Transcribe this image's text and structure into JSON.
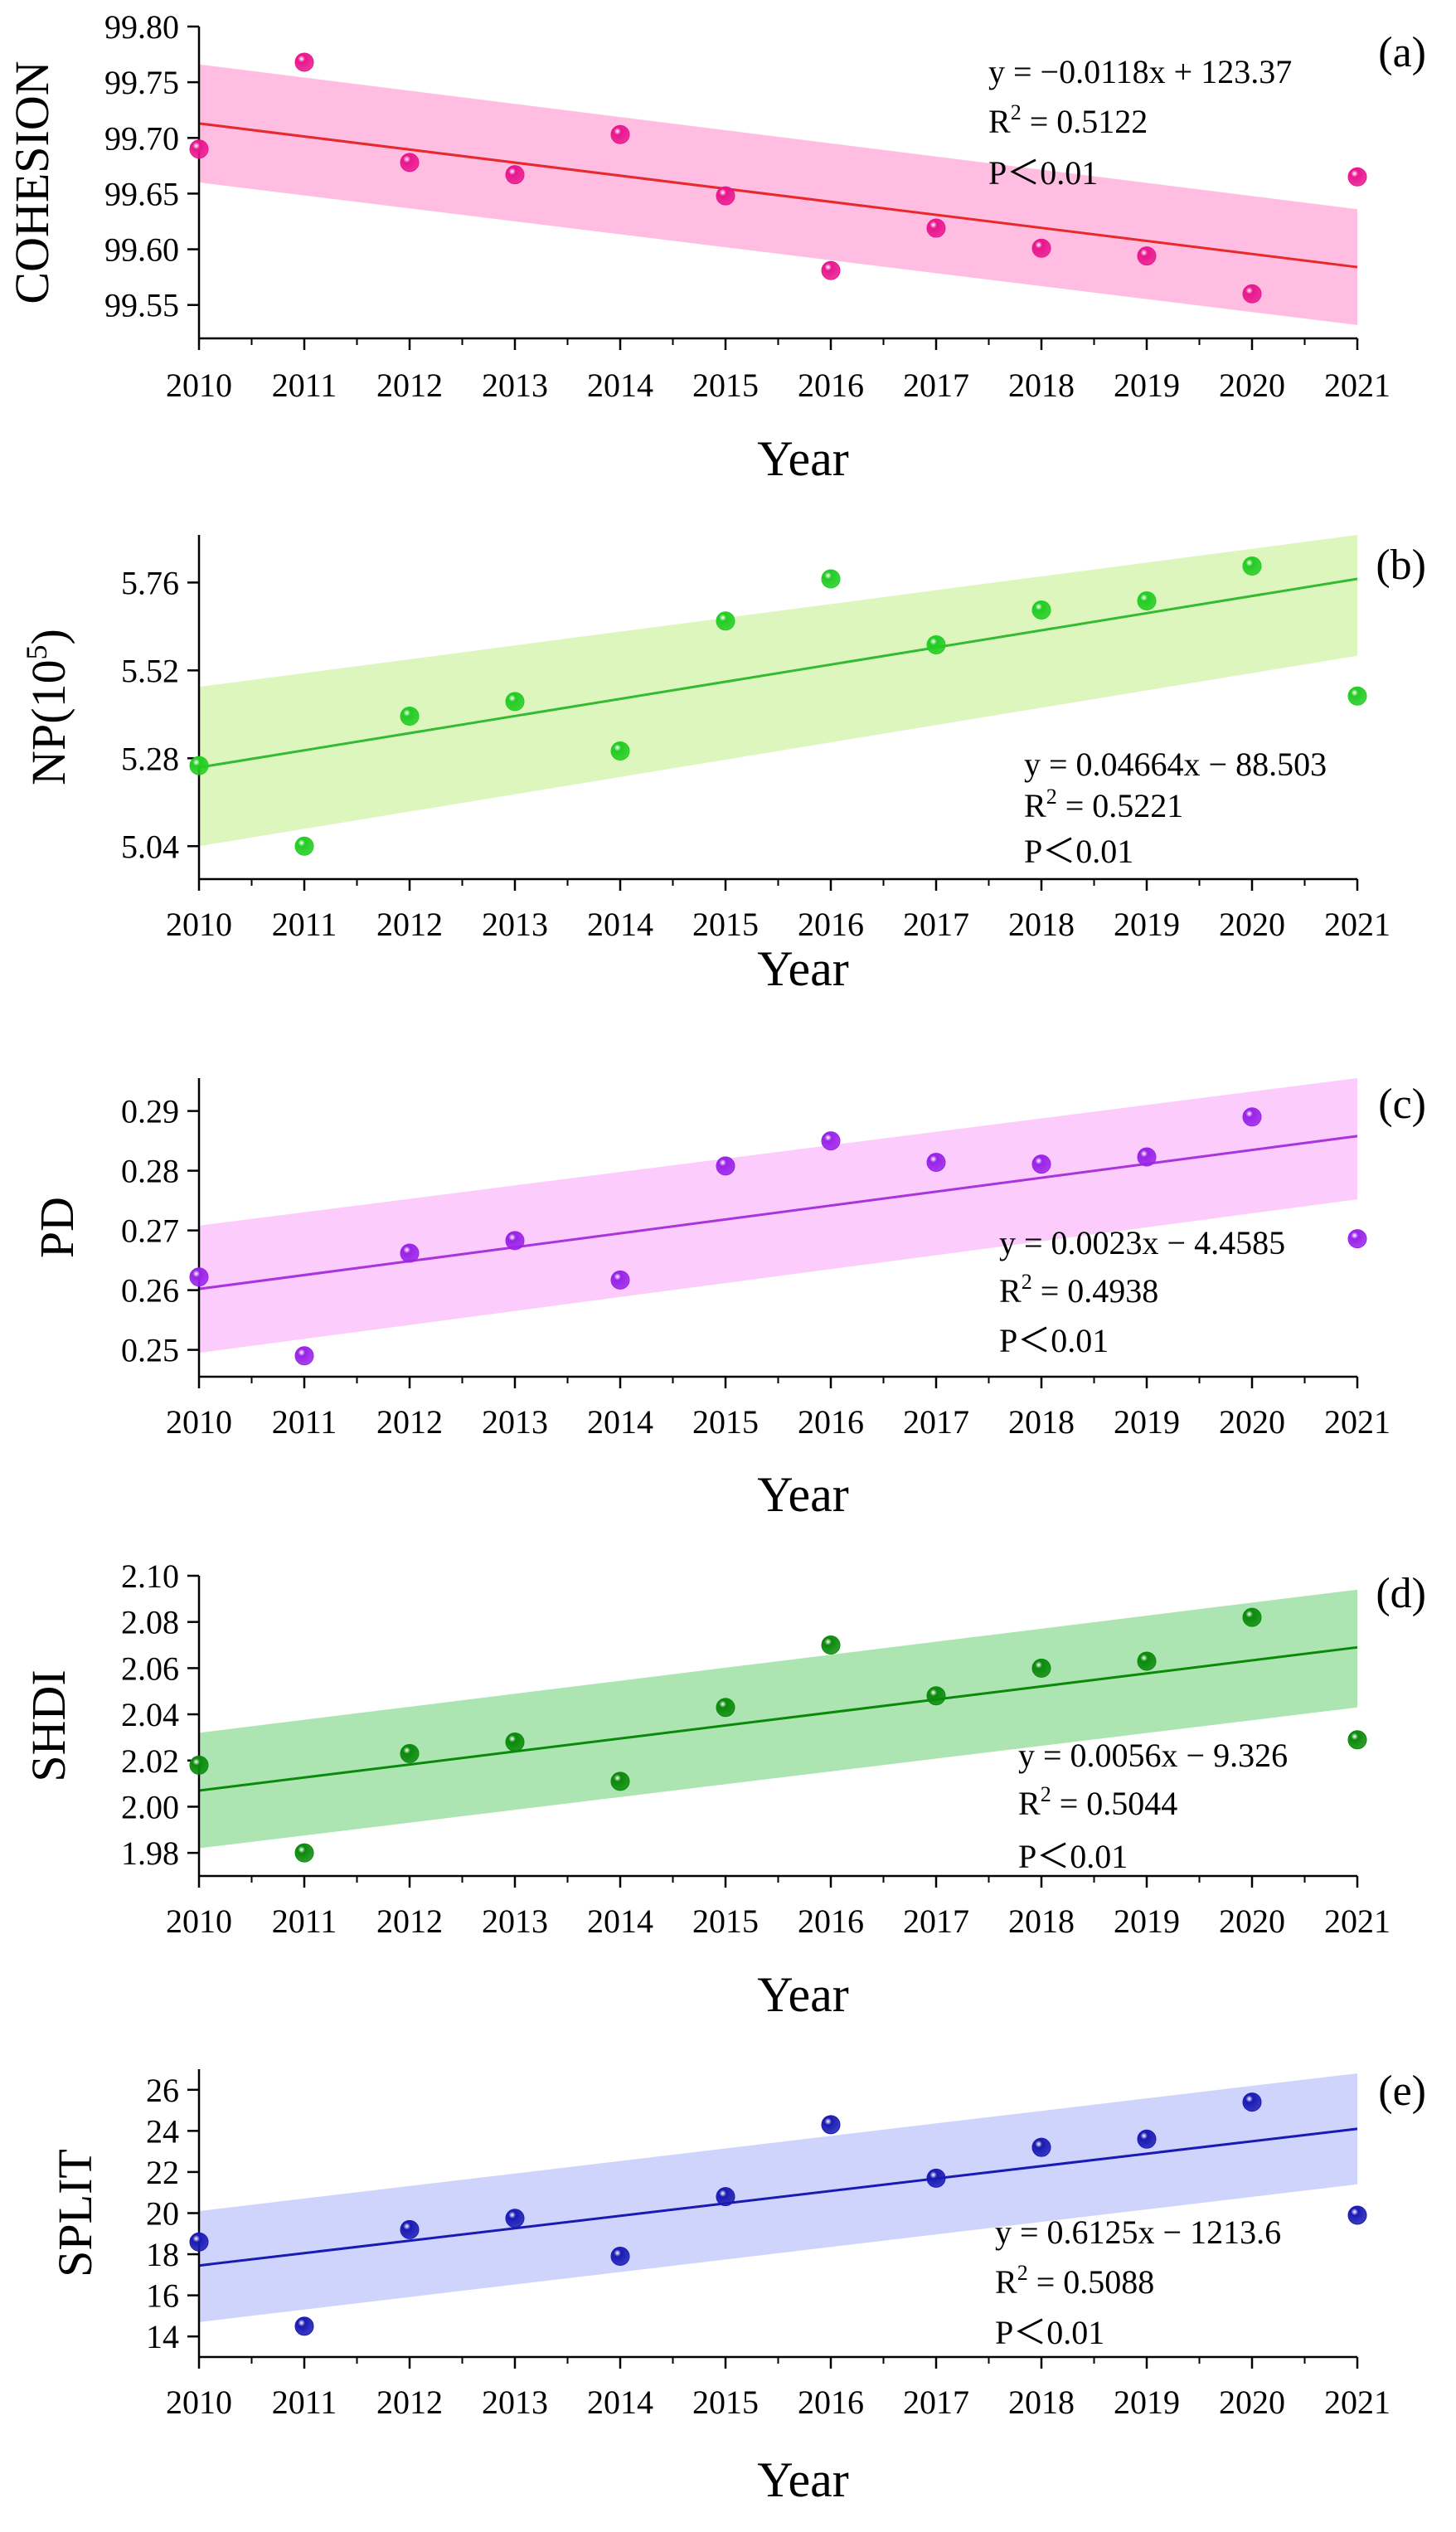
{
  "chart_data": [
    {
      "type": "scatter",
      "panel_label": "(a)",
      "xlabel": "Year",
      "ylabel": "COHESION",
      "x": [
        2010,
        2011,
        2012,
        2013,
        2014,
        2015,
        2016,
        2017,
        2018,
        2019,
        2020,
        2021
      ],
      "x_ticks": [
        "2010",
        "2011",
        "2012",
        "2013",
        "2014",
        "2015",
        "2016",
        "2017",
        "2018",
        "2019",
        "2020",
        "2021"
      ],
      "values": [
        99.69,
        99.768,
        99.678,
        99.667,
        99.703,
        99.648,
        99.581,
        99.619,
        99.601,
        99.594,
        99.56,
        99.665
      ],
      "ylim": [
        99.52,
        99.8
      ],
      "yticks": [
        99.55,
        99.6,
        99.65,
        99.7,
        99.75,
        99.8
      ],
      "ytick_labels": [
        "99.55",
        "99.60",
        "99.65",
        "99.70",
        "99.75",
        "99.80"
      ],
      "fit": {
        "start": 99.713,
        "end": 99.584
      },
      "band": {
        "upper_start": 99.766,
        "upper_end": 99.636,
        "lower_start": 99.66,
        "lower_end": 99.532
      },
      "equation": "y = −0.0118x + 123.37",
      "r2_label": "R",
      "r2_value": " = 0.5122",
      "p_value": "P＜0.01",
      "colors": {
        "point": "#e8168e",
        "line": "#e8282a",
        "band": "#ffb3dc"
      }
    },
    {
      "type": "scatter",
      "panel_label": "(b)",
      "xlabel": "Year",
      "ylabel": "NP(10",
      "ylabel_sup": "5",
      "ylabel_close": ")",
      "x": [
        2010,
        2011,
        2012,
        2013,
        2014,
        2015,
        2016,
        2017,
        2018,
        2019,
        2020,
        2021
      ],
      "x_ticks": [
        "2010",
        "2011",
        "2012",
        "2013",
        "2014",
        "2015",
        "2016",
        "2017",
        "2018",
        "2019",
        "2020",
        "2021"
      ],
      "values": [
        5.26,
        5.04,
        5.395,
        5.435,
        5.3,
        5.655,
        5.77,
        5.59,
        5.685,
        5.71,
        5.805,
        5.45
      ],
      "ylim": [
        4.95,
        5.89
      ],
      "yticks": [
        5.04,
        5.28,
        5.52,
        5.76
      ],
      "ytick_labels": [
        "5.04",
        "5.28",
        "5.52",
        "5.76"
      ],
      "fit": {
        "start": 5.255,
        "end": 5.77
      },
      "band": {
        "upper_start": 5.475,
        "upper_end": 5.89,
        "lower_start": 5.04,
        "lower_end": 5.56
      },
      "equation": "y = 0.04664x − 88.503",
      "r2_label": "R",
      "r2_value": " = 0.5221",
      "p_value": "P＜0.01",
      "colors": {
        "point": "#22cc22",
        "line": "#33bb33",
        "band": "#d6f5b3"
      }
    },
    {
      "type": "scatter",
      "panel_label": "(c)",
      "xlabel": "Year",
      "ylabel": "PD",
      "x": [
        2010,
        2011,
        2012,
        2013,
        2014,
        2015,
        2016,
        2017,
        2018,
        2019,
        2020,
        2021
      ],
      "x_ticks": [
        "2010",
        "2011",
        "2012",
        "2013",
        "2014",
        "2015",
        "2016",
        "2017",
        "2018",
        "2019",
        "2020",
        "2021"
      ],
      "values": [
        0.2622,
        0.249,
        0.2662,
        0.2683,
        0.2617,
        0.2808,
        0.285,
        0.2814,
        0.2811,
        0.2823,
        0.289,
        0.2686
      ],
      "ylim": [
        0.2455,
        0.2955
      ],
      "yticks": [
        0.25,
        0.26,
        0.27,
        0.28,
        0.29
      ],
      "ytick_labels": [
        "0.25",
        "0.26",
        "0.27",
        "0.28",
        "0.29"
      ],
      "fit": {
        "start": 0.2602,
        "end": 0.2858
      },
      "band": {
        "upper_start": 0.2708,
        "upper_end": 0.2955,
        "lower_start": 0.2495,
        "lower_end": 0.2752
      },
      "equation": "y = 0.0023x − 4.4585",
      "r2_label": "R",
      "r2_value": " = 0.4938",
      "p_value": "P＜0.01",
      "colors": {
        "point": "#9922e8",
        "line": "#aa33dd",
        "band": "#fbc4fb"
      }
    },
    {
      "type": "scatter",
      "panel_label": "(d)",
      "xlabel": "Year",
      "ylabel": "SHDI",
      "x": [
        2010,
        2011,
        2012,
        2013,
        2014,
        2015,
        2016,
        2017,
        2018,
        2019,
        2020,
        2021
      ],
      "x_ticks": [
        "2010",
        "2011",
        "2012",
        "2013",
        "2014",
        "2015",
        "2016",
        "2017",
        "2018",
        "2019",
        "2020",
        "2021"
      ],
      "values": [
        2.018,
        1.98,
        2.023,
        2.028,
        2.011,
        2.043,
        2.07,
        2.048,
        2.06,
        2.063,
        2.082,
        2.029
      ],
      "ylim": [
        1.97,
        2.1
      ],
      "yticks": [
        1.98,
        2.0,
        2.02,
        2.04,
        2.06,
        2.08,
        2.1
      ],
      "ytick_labels": [
        "1.98",
        "2.00",
        "2.02",
        "2.04",
        "2.06",
        "2.08",
        "2.10"
      ],
      "fit": {
        "start": 2.007,
        "end": 2.069
      },
      "band": {
        "upper_start": 2.032,
        "upper_end": 2.094,
        "lower_start": 1.982,
        "lower_end": 2.043
      },
      "equation": "y = 0.0056x − 9.326",
      "r2_label": " R",
      "r2_value": " = 0.5044",
      "p_value": "P＜0.01",
      "colors": {
        "point": "#0a8a0a",
        "line": "#0a8a0a",
        "band": "#9ee0a4"
      }
    },
    {
      "type": "scatter",
      "panel_label": "(e)",
      "xlabel": "Year",
      "ylabel": "SPLIT",
      "x": [
        2010,
        2011,
        2012,
        2013,
        2014,
        2015,
        2016,
        2017,
        2018,
        2019,
        2020,
        2021
      ],
      "x_ticks": [
        "2010",
        "2011",
        "2012",
        "2013",
        "2014",
        "2015",
        "2016",
        "2017",
        "2018",
        "2019",
        "2020",
        "2021"
      ],
      "values": [
        18.6,
        14.5,
        19.2,
        19.75,
        17.9,
        20.8,
        24.3,
        21.7,
        23.2,
        23.6,
        25.4,
        19.9
      ],
      "ylim": [
        13,
        27
      ],
      "yticks": [
        14,
        16,
        18,
        20,
        22,
        24,
        26
      ],
      "ytick_labels": [
        "14",
        "16",
        "18",
        "20",
        "22",
        "24",
        "26"
      ],
      "fit": {
        "start": 17.45,
        "end": 24.1
      },
      "band": {
        "upper_start": 20.1,
        "upper_end": 26.8,
        "lower_start": 14.7,
        "lower_end": 21.4
      },
      "equation": "y = 0.6125x − 1213.6",
      "r2_label": " R",
      "r2_value": " = 0.5088",
      "p_value": "P＜0.01",
      "colors": {
        "point": "#1a1ab4",
        "line": "#1a1ab4",
        "band": "#c6ccfa"
      }
    }
  ]
}
